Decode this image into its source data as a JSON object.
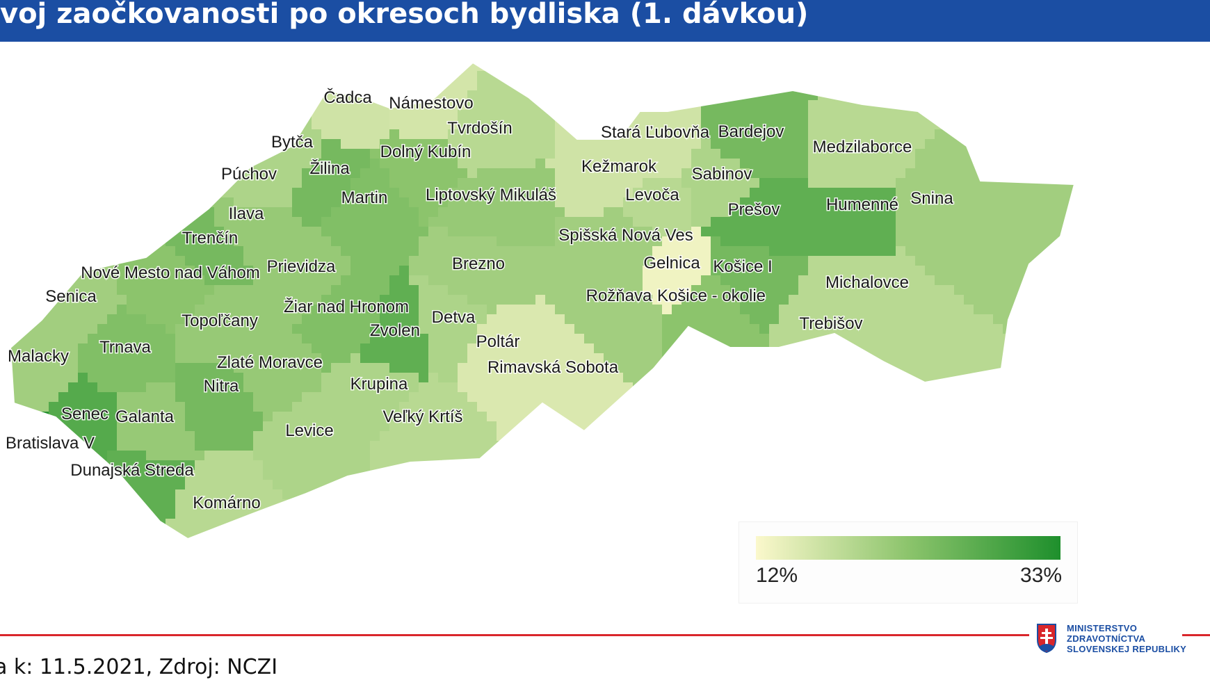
{
  "title": "voj zaočkovanosti po okresoch bydliska (1. dávkou)",
  "legend": {
    "min_label": "12%",
    "max_label": "33%",
    "color_low": "#fbf8cc",
    "color_high": "#1e8f2c"
  },
  "footer": {
    "source": "a k: 11.5.2021, Zdroj: NCZI"
  },
  "ministry": {
    "line1": "MINISTERSTVO",
    "line2": "ZDRAVOTNÍCTVA",
    "line3": "SLOVENSKEJ REPUBLIKY"
  },
  "districts": [
    {
      "name": "Čadca",
      "level": 0.2
    },
    {
      "name": "Námestovo",
      "level": 0.18
    },
    {
      "name": "Tvrdošín",
      "level": 0.3
    },
    {
      "name": "Bytča",
      "level": 0.35
    },
    {
      "name": "Dolný Kubín",
      "level": 0.5
    },
    {
      "name": "Žilina",
      "level": 0.6
    },
    {
      "name": "Púchov",
      "level": 0.35
    },
    {
      "name": "Martin",
      "level": 0.55
    },
    {
      "name": "Liptovský Mikuláš",
      "level": 0.45
    },
    {
      "name": "Ilava",
      "level": 0.45
    },
    {
      "name": "Trenčín",
      "level": 0.6
    },
    {
      "name": "Nové Mesto nad Váhom",
      "level": 0.5
    },
    {
      "name": "Prievidza",
      "level": 0.45
    },
    {
      "name": "Brezno",
      "level": 0.4
    },
    {
      "name": "Senica",
      "level": 0.4
    },
    {
      "name": "Žiar nad Hronom",
      "level": 0.55
    },
    {
      "name": "Topoľčany",
      "level": 0.45
    },
    {
      "name": "Detva",
      "level": 0.35
    },
    {
      "name": "Zvolen",
      "level": 0.7
    },
    {
      "name": "Malacky",
      "level": 0.4
    },
    {
      "name": "Trnava",
      "level": 0.55
    },
    {
      "name": "Poltár",
      "level": 0.15
    },
    {
      "name": "Zlaté Moravce",
      "level": 0.45
    },
    {
      "name": "Rimavská Sobota",
      "level": 0.15
    },
    {
      "name": "Nitra",
      "level": 0.6
    },
    {
      "name": "Krupina",
      "level": 0.35
    },
    {
      "name": "Senec",
      "level": 0.75
    },
    {
      "name": "Galanta",
      "level": 0.45
    },
    {
      "name": "Veľký Krtíš",
      "level": 0.3
    },
    {
      "name": "Levice",
      "level": 0.35
    },
    {
      "name": "Bratislava V",
      "level": 0.95
    },
    {
      "name": "Dunajská Streda",
      "level": 0.7
    },
    {
      "name": "Komárno",
      "level": 0.3
    },
    {
      "name": "Stará Ľubovňa",
      "level": 0.2
    },
    {
      "name": "Bardejov",
      "level": 0.6
    },
    {
      "name": "Medzilaborce",
      "level": 0.3
    },
    {
      "name": "Kežmarok",
      "level": 0.2
    },
    {
      "name": "Sabinov",
      "level": 0.35
    },
    {
      "name": "Levoča",
      "level": 0.3
    },
    {
      "name": "Prešov",
      "level": 0.7
    },
    {
      "name": "Humenné",
      "level": 0.7
    },
    {
      "name": "Snina",
      "level": 0.4
    },
    {
      "name": "Spišská Nová Ves",
      "level": 0.4
    },
    {
      "name": "Gelnica",
      "level": 0.05
    },
    {
      "name": "Košice I",
      "level": 0.6
    },
    {
      "name": "Rožňava",
      "level": 0.4
    },
    {
      "name": "Košice - okolie",
      "level": 0.5
    },
    {
      "name": "Michalovce",
      "level": 0.3
    },
    {
      "name": "Trebišov",
      "level": 0.3
    }
  ]
}
